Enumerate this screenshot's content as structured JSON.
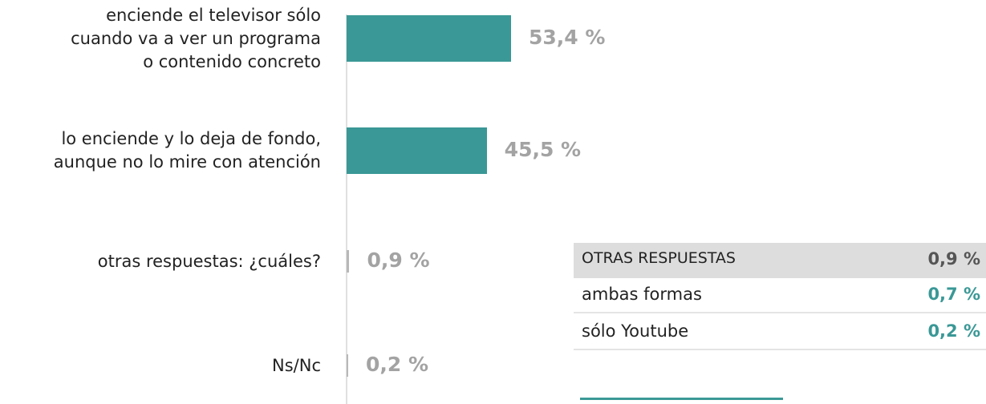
{
  "chart_data": {
    "type": "bar",
    "categories": [
      "enciende el televisor sólo\ncuando va a ver un programa\no contenido concreto",
      "lo enciende y lo deja de fondo,\naunque no lo mire con atención",
      "otras respuestas: ¿cuáles?",
      "Ns/Nc"
    ],
    "values": [
      53.4,
      45.5,
      0.9,
      0.2
    ],
    "value_labels": [
      "53,4 %",
      "45,5 %",
      "0,9 %",
      "0,2 %"
    ],
    "colors": [
      "#3a9896",
      "#3a9896",
      "#b8b8b8",
      "#b8b8b8"
    ]
  },
  "table": {
    "rows": [
      [
        "OTRAS RESPUESTAS",
        "0,9 %"
      ],
      [
        "ambas formas",
        "0,7 %"
      ],
      [
        "sólo Youtube",
        "0,2 %"
      ]
    ]
  }
}
